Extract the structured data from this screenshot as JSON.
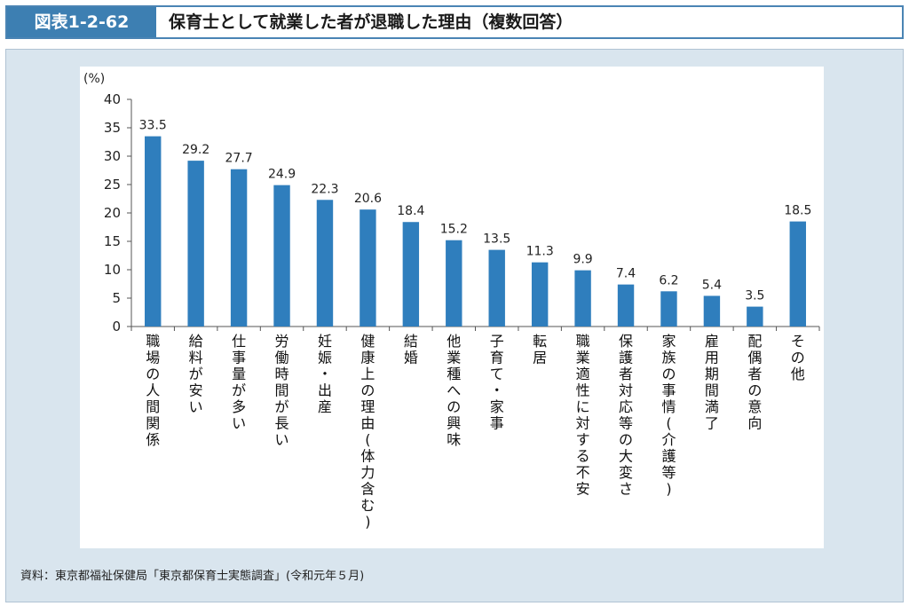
{
  "header": {
    "figure_number": "図表1-2-62",
    "title": "保育士として就業した者が退職した理由（複数回答）"
  },
  "source": "資料：東京都福祉保健局「東京都保育士実態調査」(令和元年５月)",
  "colors": {
    "bar": "#2f7ebd",
    "header_accent": "#3d7fb2",
    "panel_bg": "#d9e5ee"
  },
  "chart_data": {
    "type": "bar",
    "ylabel": "(%)",
    "ylim": [
      0,
      40
    ],
    "yticks": [
      0,
      5,
      10,
      15,
      20,
      25,
      30,
      35,
      40
    ],
    "grid": false,
    "categories": [
      "職場の人間関係",
      "給料が安い",
      "仕事量が多い",
      "労働時間が長い",
      "妊娠・出産",
      "健康上の理由(体力含む)",
      "結婚",
      "他業種への興味",
      "子育て・家事",
      "転居",
      "職業適性に対する不安",
      "保護者対応等の大変さ",
      "家族の事情(介護等)",
      "雇用期間満了",
      "配偶者の意向",
      "その他"
    ],
    "values": [
      33.5,
      29.2,
      27.7,
      24.9,
      22.3,
      20.6,
      18.4,
      15.2,
      13.5,
      11.3,
      9.9,
      7.4,
      6.2,
      5.4,
      3.5,
      18.5
    ]
  }
}
